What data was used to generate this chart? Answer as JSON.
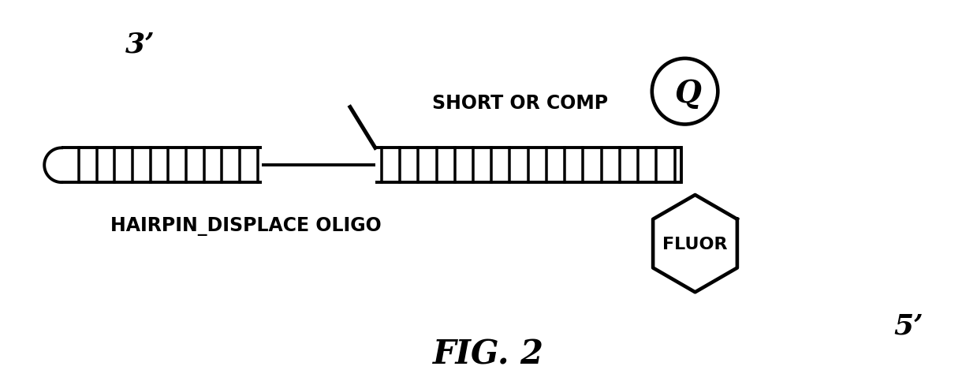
{
  "fig_width": 12.39,
  "fig_height": 4.89,
  "bg_color": "#ffffff",
  "title": "FIG. 2",
  "label_3prime": "3’",
  "label_5prime": "5’",
  "label_hairpin": "HAIRPIN_DISPLACE OLIGO",
  "label_short": "SHORT OR COMP",
  "label_fluor": "FLUOR",
  "label_Q": "Q",
  "line_color": "#000000",
  "line_lw": 2.8
}
